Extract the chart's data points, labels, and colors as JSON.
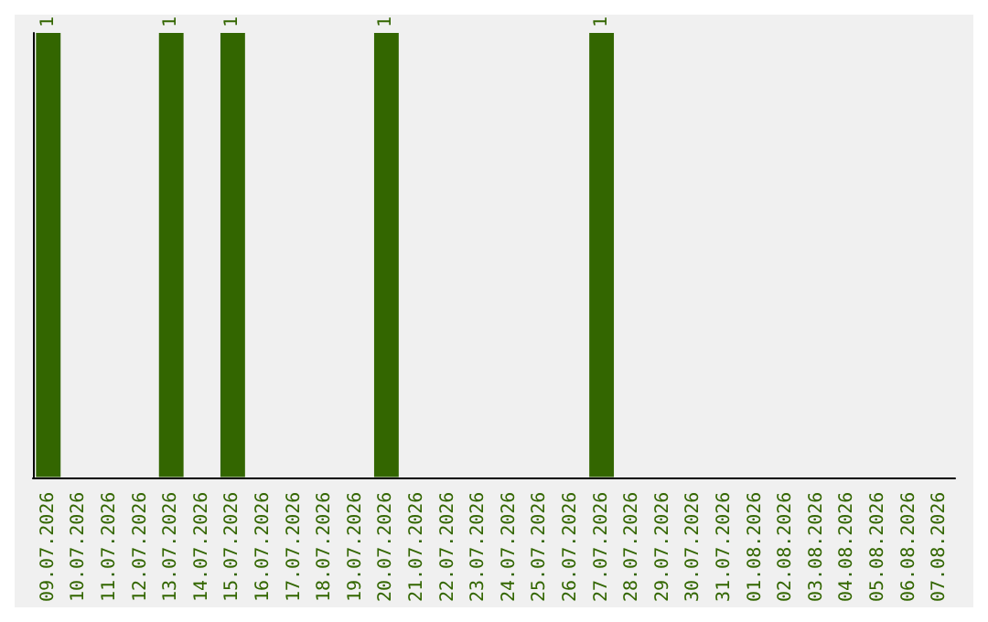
{
  "chart_data": {
    "type": "bar",
    "categories": [
      "09.07.2026",
      "10.07.2026",
      "11.07.2026",
      "12.07.2026",
      "13.07.2026",
      "14.07.2026",
      "15.07.2026",
      "16.07.2026",
      "17.07.2026",
      "18.07.2026",
      "19.07.2026",
      "20.07.2026",
      "21.07.2026",
      "22.07.2026",
      "23.07.2026",
      "24.07.2026",
      "25.07.2026",
      "26.07.2026",
      "27.07.2026",
      "28.07.2026",
      "29.07.2026",
      "30.07.2026",
      "31.07.2026",
      "01.08.2026",
      "02.08.2026",
      "03.08.2026",
      "04.08.2026",
      "05.08.2026",
      "06.08.2026",
      "07.08.2026"
    ],
    "values": [
      1,
      0,
      0,
      0,
      1,
      0,
      1,
      0,
      0,
      0,
      0,
      1,
      0,
      0,
      0,
      0,
      0,
      0,
      1,
      0,
      0,
      0,
      0,
      0,
      0,
      0,
      0,
      0,
      0,
      0
    ],
    "value_labels": [
      "1",
      null,
      null,
      null,
      "1",
      null,
      "1",
      null,
      null,
      null,
      null,
      "1",
      null,
      null,
      null,
      null,
      null,
      null,
      "1",
      null,
      null,
      null,
      null,
      null,
      null,
      null,
      null,
      null,
      null,
      null
    ],
    "color": "#336600",
    "tick_labels": "x",
    "grid": false
  }
}
